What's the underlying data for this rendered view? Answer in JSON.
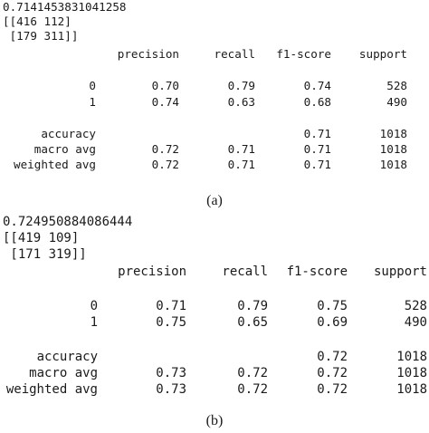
{
  "panels": [
    {
      "accuracy_score": "0.7141453831041258",
      "confusion_matrix": [
        "[[416 112]",
        " [179 311]]"
      ],
      "headers": [
        "precision",
        "recall",
        "f1-score",
        "support"
      ],
      "rows": [
        {
          "label": "0",
          "precision": "0.70",
          "recall": "0.79",
          "f1": "0.74",
          "support": "528"
        },
        {
          "label": "1",
          "precision": "0.74",
          "recall": "0.63",
          "f1": "0.68",
          "support": "490"
        },
        {
          "label": "accuracy",
          "precision": "",
          "recall": "",
          "f1": "0.71",
          "support": "1018"
        },
        {
          "label": "macro avg",
          "precision": "0.72",
          "recall": "0.71",
          "f1": "0.71",
          "support": "1018"
        },
        {
          "label": "weighted avg",
          "precision": "0.72",
          "recall": "0.71",
          "f1": "0.71",
          "support": "1018"
        }
      ],
      "caption": "(a)"
    },
    {
      "accuracy_score": "0.724950884086444",
      "confusion_matrix": [
        "[[419 109]",
        " [171 319]]"
      ],
      "headers": [
        "precision",
        "recall",
        "f1-score",
        "support"
      ],
      "rows": [
        {
          "label": "0",
          "precision": "0.71",
          "recall": "0.79",
          "f1": "0.75",
          "support": "528"
        },
        {
          "label": "1",
          "precision": "0.75",
          "recall": "0.65",
          "f1": "0.69",
          "support": "490"
        },
        {
          "label": "accuracy",
          "precision": "",
          "recall": "",
          "f1": "0.72",
          "support": "1018"
        },
        {
          "label": "macro avg",
          "precision": "0.73",
          "recall": "0.72",
          "f1": "0.72",
          "support": "1018"
        },
        {
          "label": "weighted avg",
          "precision": "0.73",
          "recall": "0.72",
          "f1": "0.72",
          "support": "1018"
        }
      ],
      "caption": "(b)"
    }
  ]
}
